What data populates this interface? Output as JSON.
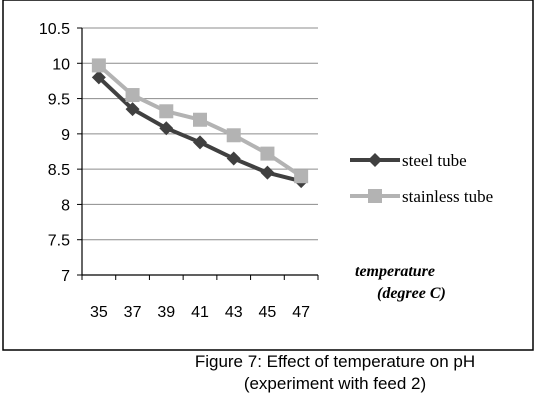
{
  "caption": {
    "line1": "Figure 7: Effect of temperature on pH",
    "line2": "(experiment with feed 2)"
  },
  "chart_data": {
    "type": "line",
    "title": "",
    "xlabel": "temperature (degree C)",
    "xlabel_lines": [
      "temperature",
      "(degree C)"
    ],
    "ylabel": "",
    "x": [
      35,
      37,
      39,
      41,
      43,
      45,
      47
    ],
    "categories": [
      "35",
      "37",
      "39",
      "41",
      "43",
      "45",
      "47"
    ],
    "y_ticks": [
      "7",
      "7.5",
      "8",
      "8.5",
      "9",
      "9.5",
      "10",
      "10.5"
    ],
    "ylim": [
      7,
      10.5
    ],
    "grid": true,
    "legend": "right",
    "series": [
      {
        "name": "steel tube",
        "color": "#404040",
        "marker": "diamond",
        "values": [
          9.8,
          9.35,
          9.08,
          8.88,
          8.65,
          8.45,
          8.33
        ]
      },
      {
        "name": "stainless tube",
        "color": "#b3b3b3",
        "marker": "square",
        "values": [
          9.97,
          9.55,
          9.32,
          9.2,
          8.98,
          8.72,
          8.4
        ]
      }
    ]
  }
}
